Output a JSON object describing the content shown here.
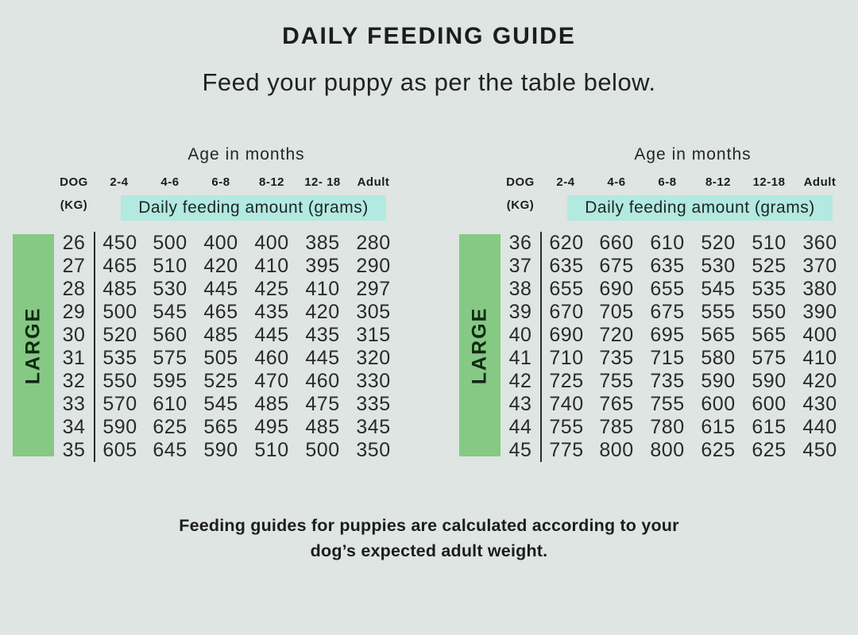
{
  "page": {
    "title": "DAILY FEEDING GUIDE",
    "subtitle": "Feed your puppy as per the table below.",
    "footer_line1": "Feeding guides for puppies are calculated according to your",
    "footer_line2": "dog’s expected adult weight."
  },
  "colors": {
    "background": "#dee5e2",
    "highlight": "#b2e9e0",
    "size_band": "#85c984",
    "text": "#1d1d1b"
  },
  "tables": [
    {
      "size_label": "LARGE",
      "age_header": "Age in months",
      "dog_label": "DOG",
      "kg_label": "(KG)",
      "band_label": "Daily feeding amount (grams)",
      "age_columns": [
        "2-4",
        "4-6",
        "6-8",
        "8-12",
        "12- 18",
        "Adult"
      ],
      "rows": [
        {
          "kg": "26",
          "values": [
            "450",
            "500",
            "400",
            "400",
            "385",
            "280"
          ]
        },
        {
          "kg": "27",
          "values": [
            "465",
            "510",
            "420",
            "410",
            "395",
            "290"
          ]
        },
        {
          "kg": "28",
          "values": [
            "485",
            "530",
            "445",
            "425",
            "410",
            "297"
          ]
        },
        {
          "kg": "29",
          "values": [
            "500",
            "545",
            "465",
            "435",
            "420",
            "305"
          ]
        },
        {
          "kg": "30",
          "values": [
            "520",
            "560",
            "485",
            "445",
            "435",
            "315"
          ]
        },
        {
          "kg": "31",
          "values": [
            "535",
            "575",
            "505",
            "460",
            "445",
            "320"
          ]
        },
        {
          "kg": "32",
          "values": [
            "550",
            "595",
            "525",
            "470",
            "460",
            "330"
          ]
        },
        {
          "kg": "33",
          "values": [
            "570",
            "610",
            "545",
            "485",
            "475",
            "335"
          ]
        },
        {
          "kg": "34",
          "values": [
            "590",
            "625",
            "565",
            "495",
            "485",
            "345"
          ]
        },
        {
          "kg": "35",
          "values": [
            "605",
            "645",
            "590",
            "510",
            "500",
            "350"
          ]
        }
      ]
    },
    {
      "size_label": "LARGE",
      "age_header": "Age in months",
      "dog_label": "DOG",
      "kg_label": "(KG)",
      "band_label": "Daily feeding amount (grams)",
      "age_columns": [
        "2-4",
        "4-6",
        "6-8",
        "8-12",
        "12-18",
        "Adult"
      ],
      "rows": [
        {
          "kg": "36",
          "values": [
            "620",
            "660",
            "610",
            "520",
            "510",
            "360"
          ]
        },
        {
          "kg": "37",
          "values": [
            "635",
            "675",
            "635",
            "530",
            "525",
            "370"
          ]
        },
        {
          "kg": "38",
          "values": [
            "655",
            "690",
            "655",
            "545",
            "535",
            "380"
          ]
        },
        {
          "kg": "39",
          "values": [
            "670",
            "705",
            "675",
            "555",
            "550",
            "390"
          ]
        },
        {
          "kg": "40",
          "values": [
            "690",
            "720",
            "695",
            "565",
            "565",
            "400"
          ]
        },
        {
          "kg": "41",
          "values": [
            "710",
            "735",
            "715",
            "580",
            "575",
            "410"
          ]
        },
        {
          "kg": "42",
          "values": [
            "725",
            "755",
            "735",
            "590",
            "590",
            "420"
          ]
        },
        {
          "kg": "43",
          "values": [
            "740",
            "765",
            "755",
            "600",
            "600",
            "430"
          ]
        },
        {
          "kg": "44",
          "values": [
            "755",
            "785",
            "780",
            "615",
            "615",
            "440"
          ]
        },
        {
          "kg": "45",
          "values": [
            "775",
            "800",
            "800",
            "625",
            "625",
            "450"
          ]
        }
      ]
    }
  ]
}
